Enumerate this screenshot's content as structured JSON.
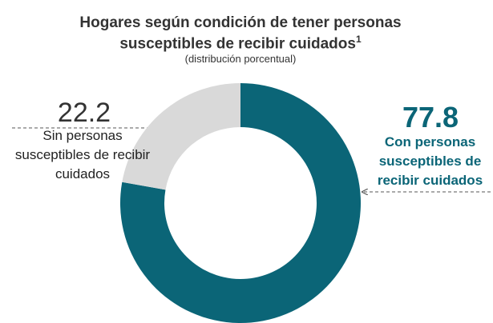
{
  "chart_data": {
    "type": "donut",
    "title": [
      "Hogares según condición de tener personas",
      "susceptibles de recibir cuidados"
    ],
    "title_superscript": "1",
    "subtitle": "(distribución porcentual)",
    "categories": [
      "Con personas susceptibles de recibir cuidados",
      "Sin personas susceptibles de recibir cuidados"
    ],
    "values": [
      77.8,
      22.2
    ],
    "colors": [
      "#0b6577",
      "#d9d9d9"
    ]
  }
}
